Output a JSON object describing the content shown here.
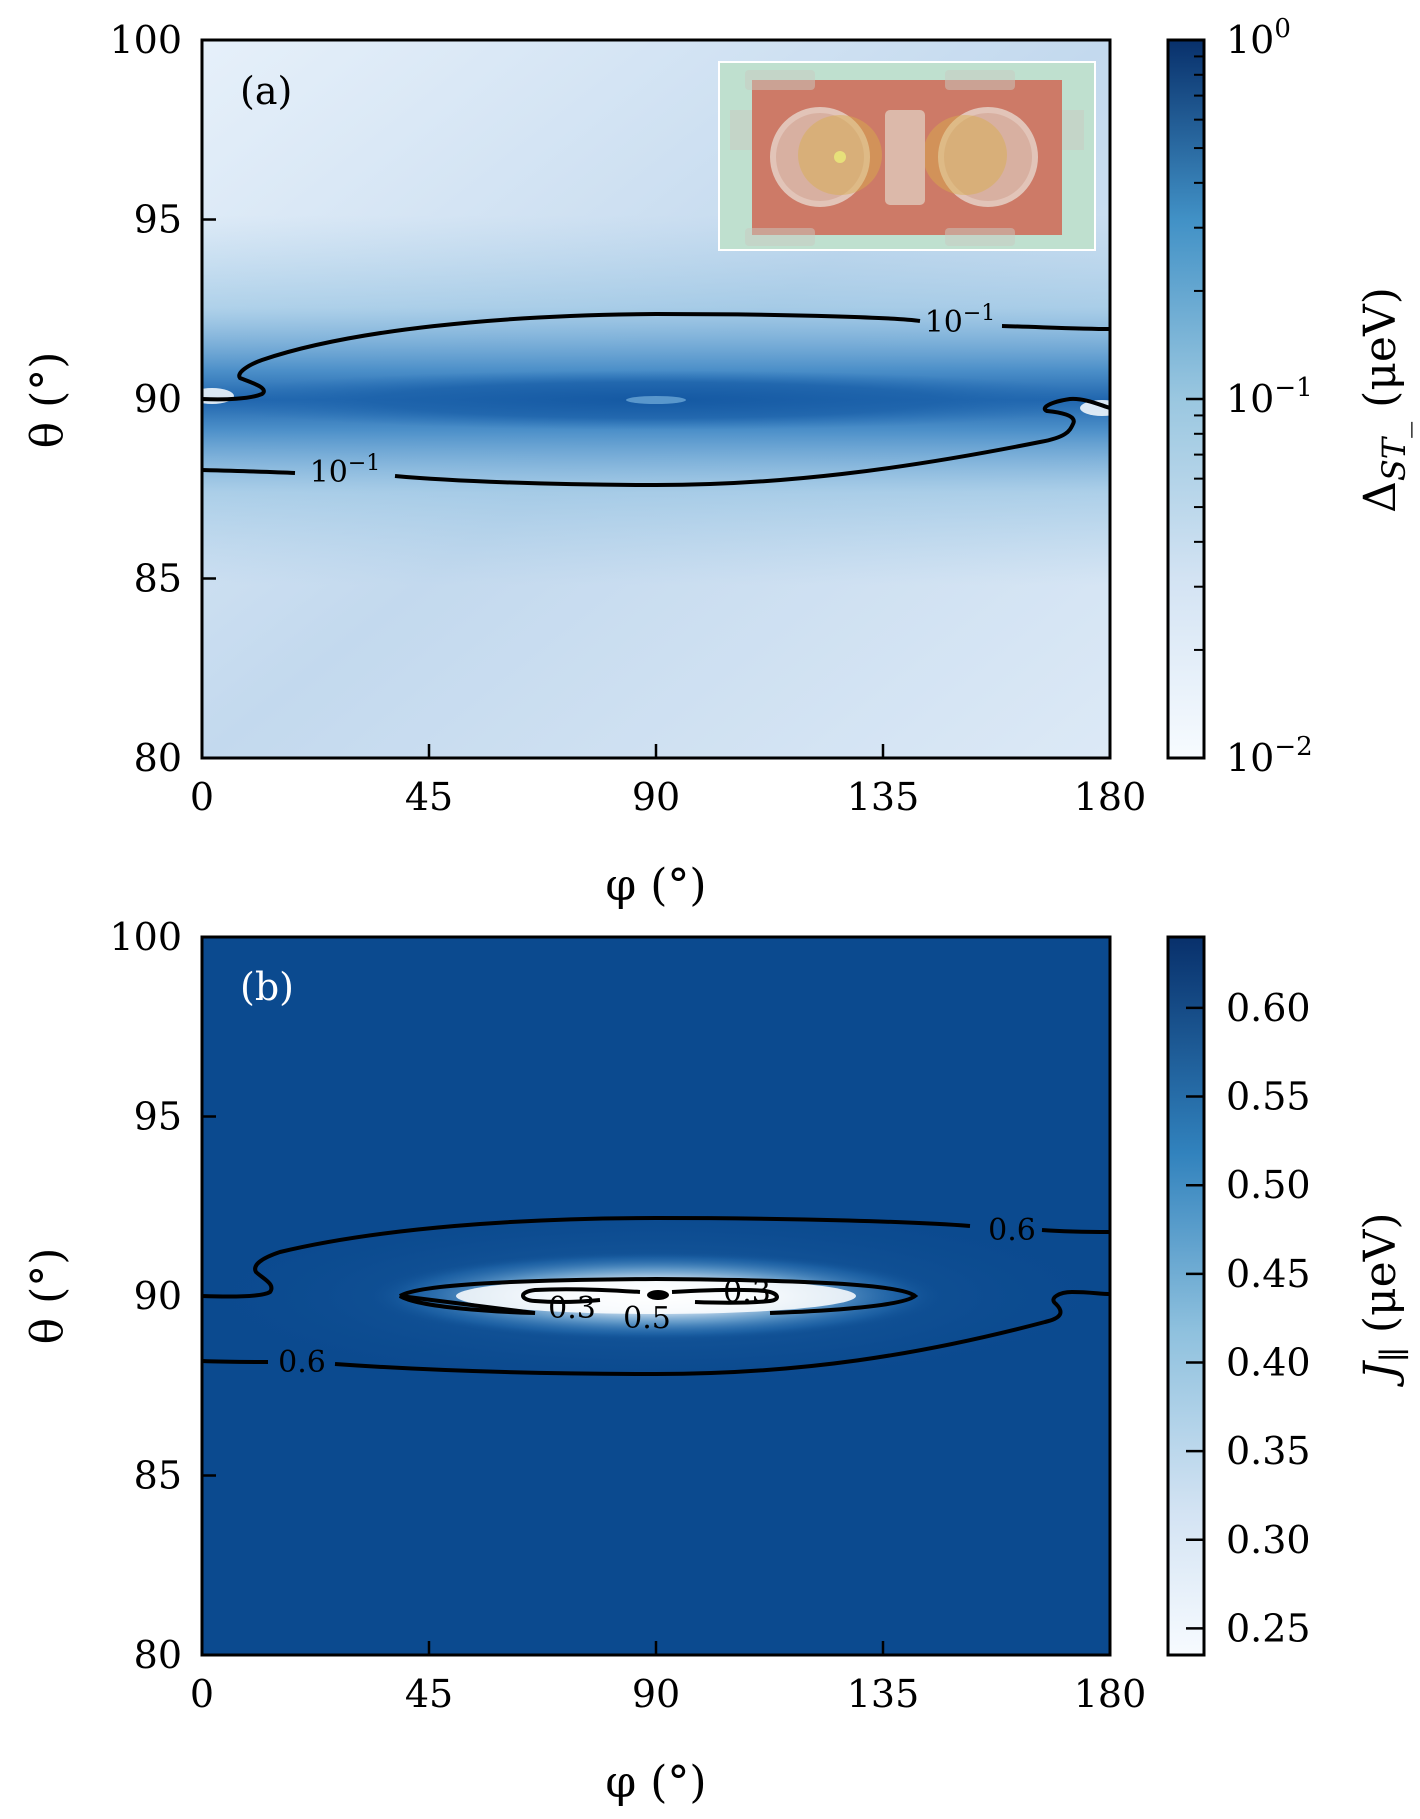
{
  "chart_data": [
    {
      "type": "heatmap",
      "panel_label": "(a)",
      "xlabel": "φ (°)",
      "ylabel": "θ (°)",
      "xlim": [
        0,
        180
      ],
      "ylim": [
        80,
        100
      ],
      "x_ticks": [
        0,
        45,
        90,
        135,
        180
      ],
      "x_tick_labels": [
        "0",
        "45",
        "90",
        "135",
        "180"
      ],
      "y_ticks": [
        80,
        85,
        90,
        95,
        100
      ],
      "y_tick_labels": [
        "80",
        "85",
        "90",
        "95",
        "100"
      ],
      "colorbar": {
        "label_main": "Δ",
        "label_sub": "ST_",
        "label_units": "(μeV)",
        "scale": "log",
        "range": [
          0.01,
          1
        ],
        "ticks": [
          {
            "value": 0.01,
            "base": "10",
            "exp": "−2"
          },
          {
            "value": 0.1,
            "base": "10",
            "exp": "−1"
          },
          {
            "value": 1,
            "base": "10",
            "exp": "0"
          }
        ]
      },
      "contours": [
        {
          "level": 0.1,
          "label_base": "10",
          "label_exp": "−1"
        }
      ],
      "peak_theta": 90,
      "inset": "device-schematic"
    },
    {
      "type": "heatmap",
      "panel_label": "(b)",
      "xlabel": "φ (°)",
      "ylabel": "θ (°)",
      "xlim": [
        0,
        180
      ],
      "ylim": [
        80,
        100
      ],
      "x_ticks": [
        0,
        45,
        90,
        135,
        180
      ],
      "x_tick_labels": [
        "0",
        "45",
        "90",
        "135",
        "180"
      ],
      "y_ticks": [
        80,
        85,
        90,
        95,
        100
      ],
      "y_tick_labels": [
        "80",
        "85",
        "90",
        "95",
        "100"
      ],
      "colorbar": {
        "label_main": "J",
        "label_sub": "∥",
        "label_units": "(μeV)",
        "scale": "linear",
        "range": [
          0.235,
          0.64
        ],
        "ticks": [
          {
            "value": 0.25,
            "label": "0.25"
          },
          {
            "value": 0.3,
            "label": "0.30"
          },
          {
            "value": 0.35,
            "label": "0.35"
          },
          {
            "value": 0.4,
            "label": "0.40"
          },
          {
            "value": 0.45,
            "label": "0.45"
          },
          {
            "value": 0.5,
            "label": "0.50"
          },
          {
            "value": 0.55,
            "label": "0.55"
          },
          {
            "value": 0.6,
            "label": "0.60"
          }
        ]
      },
      "contours": [
        {
          "level": 0.6,
          "label": "0.6"
        },
        {
          "level": 0.5,
          "label": "0.5"
        },
        {
          "level": 0.3,
          "label": "0.3"
        }
      ],
      "minimum_at": {
        "phi": 90,
        "theta": 90
      }
    }
  ]
}
